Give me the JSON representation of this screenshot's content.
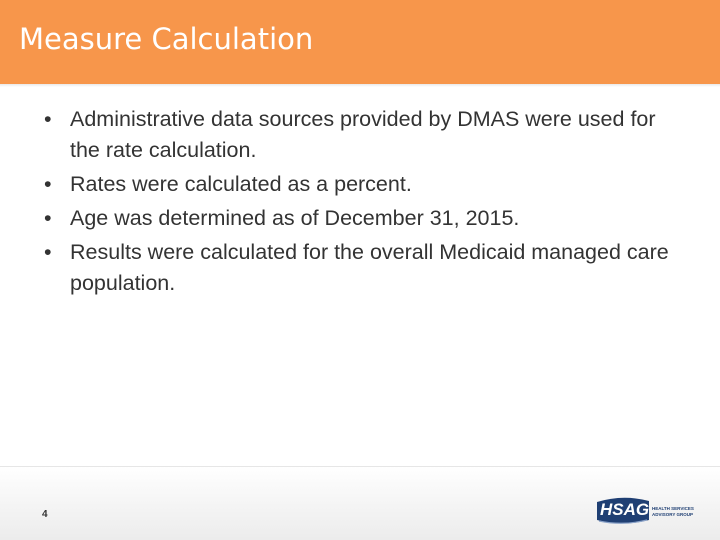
{
  "slide": {
    "title": "Measure Calculation",
    "bullets": [
      "Administrative data sources provided by DMAS were used for the rate calculation.",
      "Rates were calculated as a percent.",
      "Age was determined as of December 31, 2015.",
      "Results were calculated for the overall Medicaid managed care population."
    ],
    "page_number": "4"
  },
  "logo": {
    "name": "HSAG",
    "tagline_line1": "HEALTH SERVICES",
    "tagline_line2": "ADVISORY GROUP"
  },
  "colors": {
    "header": "#F7964B",
    "logo_blue": "#1F3F73",
    "text": "#333333"
  }
}
